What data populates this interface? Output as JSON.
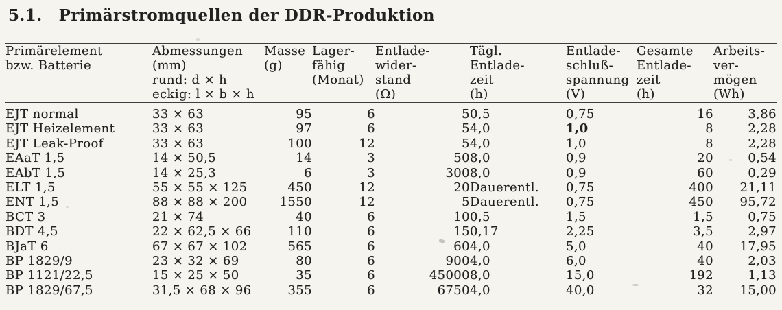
{
  "page": {
    "section_number": "5.1.",
    "title": "Primärstromquellen der DDR-Produktion"
  },
  "table": {
    "columns": [
      {
        "id": "element",
        "label_lines": [
          "Primärelement",
          "bzw. Batterie"
        ]
      },
      {
        "id": "dimensions",
        "label_lines": [
          "Abmessungen",
          "(mm)",
          "rund: d × h",
          "eckig: l × b × h"
        ]
      },
      {
        "id": "mass",
        "label_lines": [
          "Masse",
          "(g)"
        ]
      },
      {
        "id": "shelf-life",
        "label_lines": [
          "Lager-",
          "fähig",
          "(Monat)"
        ]
      },
      {
        "id": "discharge-resistance",
        "label_lines": [
          "Entlade-",
          "wider-",
          "stand",
          "(Ω)"
        ]
      },
      {
        "id": "daily-discharge-time",
        "label_lines": [
          "Tägl.",
          "Entlade-",
          "zeit",
          "(h)"
        ]
      },
      {
        "id": "cutoff-voltage",
        "label_lines": [
          "Entlade-",
          "schluß-",
          "spannung",
          "(V)"
        ]
      },
      {
        "id": "total-discharge-time",
        "label_lines": [
          "Gesamte",
          "Entlade-",
          "zeit",
          "(h)"
        ]
      },
      {
        "id": "energy-capacity",
        "label_lines": [
          "Arbeits-",
          "ver-",
          "mögen",
          "(Wh)"
        ]
      }
    ],
    "rows": [
      [
        "EJT normal",
        "33 × 63",
        "95",
        "6",
        "5",
        "0,5",
        "0,75",
        "16",
        "3,86"
      ],
      [
        "EJT Heizelement",
        "33 × 63",
        "97",
        "6",
        "5",
        "4,0",
        "1,0",
        "8",
        "2,28"
      ],
      [
        "EJT Leak-Proof",
        "33 × 63",
        "100",
        "12",
        "5",
        "4,0",
        "1,0",
        "8",
        "2,28"
      ],
      [
        "EAaT 1,5",
        "14 × 50,5",
        "14",
        "3",
        "50",
        "8,0",
        "0,9",
        "20",
        "0,54"
      ],
      [
        "EAbT 1,5",
        "14 × 25,3",
        "6",
        "3",
        "300",
        "8,0",
        "0,9",
        "60",
        "0,29"
      ],
      [
        "ELT 1,5",
        "55 × 55 × 125",
        "450",
        "12",
        "20",
        "Dauerentl.",
        "0,75",
        "400",
        "21,11"
      ],
      [
        "ENT 1,5",
        "88 × 88 × 200",
        "1550",
        "12",
        "5",
        "Dauerentl.",
        "0,75",
        "450",
        "95,72"
      ],
      [
        "BCT 3",
        "21 × 74",
        "40",
        "6",
        "10",
        "0,5",
        "1,5",
        "1,5",
        "0,75"
      ],
      [
        "BDT 4,5",
        "22 × 62,5 × 66",
        "110",
        "6",
        "15",
        "0,17",
        "2,25",
        "3,5",
        "2,97"
      ],
      [
        "BJaT 6",
        "67 × 67 × 102",
        "565",
        "6",
        "60",
        "4,0",
        "5,0",
        "40",
        "17,95"
      ],
      [
        "BP 1829/9",
        "23 × 32 × 69",
        "80",
        "6",
        "900",
        "4,0",
        "6,0",
        "40",
        "2,03"
      ],
      [
        "BP 1121/22,5",
        "15 × 25 × 50",
        "35",
        "6",
        "45000",
        "8,0",
        "15,0",
        "192",
        "1,13"
      ],
      [
        "BP 1829/67,5",
        "31,5 × 68 × 96",
        "355",
        "6",
        "6750",
        "4,0",
        "40,0",
        "32",
        "15,00"
      ]
    ],
    "bold_cells": [
      [
        1,
        6
      ]
    ]
  },
  "colors": {
    "paper": "#f5f4ef",
    "ink": "#222120",
    "rule": "#3e3e3e"
  }
}
